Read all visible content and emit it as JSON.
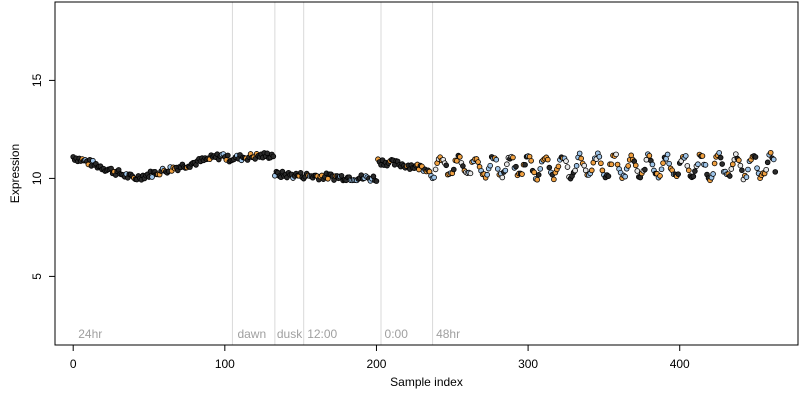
{
  "chart_data": {
    "type": "scatter",
    "xlabel": "Sample index",
    "ylabel": "Expression",
    "xlim": [
      -12,
      478
    ],
    "ylim": [
      1.5,
      19
    ],
    "x_ticks": [
      0,
      100,
      200,
      300,
      400
    ],
    "y_ticks": [
      5,
      10,
      15
    ],
    "grid": false,
    "vertical_lines": [
      105,
      133,
      152,
      203,
      237
    ],
    "segment_labels": [
      {
        "x": 2,
        "text": "24hr"
      },
      {
        "x": 107,
        "text": "dawn"
      },
      {
        "x": 133,
        "text": "dusk"
      },
      {
        "x": 153,
        "text": "12:00"
      },
      {
        "x": 204,
        "text": "0:00"
      },
      {
        "x": 238,
        "text": "48hr"
      }
    ],
    "colors": {
      "point_outline": "#000000",
      "fill_dark": "#2a2a2a",
      "fill_orange": "#f0a040",
      "fill_blue": "#9ec4e8",
      "fill_light": "#e8e8e8",
      "vline": "#d9d9d9",
      "segment_label": "#a0a0a0"
    },
    "series_levels": [
      {
        "x_from": 0,
        "x_to": 40,
        "y_from": 11.1,
        "y_to": 10.0
      },
      {
        "x_from": 40,
        "x_to": 100,
        "y_from": 10.0,
        "y_to": 11.2
      },
      {
        "x_from": 100,
        "x_to": 132,
        "y_from": 11.0,
        "y_to": 11.2
      },
      {
        "x_from": 133,
        "x_to": 200,
        "y_from": 10.2,
        "y_to": 10.0
      },
      {
        "x_from": 200,
        "x_to": 235,
        "y_from": 10.9,
        "y_to": 10.5
      },
      {
        "x_from": 235,
        "x_to": 464,
        "y_from": 10.6,
        "y_to": 10.6
      }
    ],
    "n_points": 464
  }
}
